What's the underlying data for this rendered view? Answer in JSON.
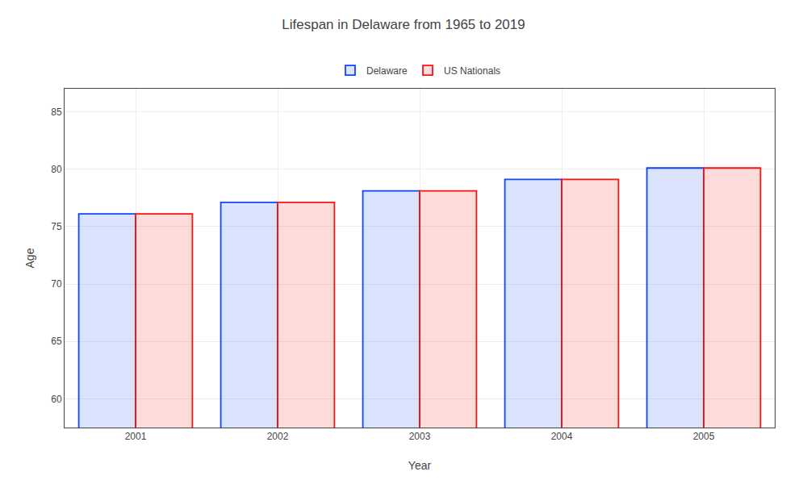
{
  "chart_data": {
    "type": "bar",
    "title": "Lifespan in Delaware from 1965 to 2019",
    "xlabel": "Year",
    "ylabel": "Age",
    "categories": [
      "2001",
      "2002",
      "2003",
      "2004",
      "2005"
    ],
    "series": [
      {
        "name": "Delaware",
        "color": "#1144ff",
        "values": [
          76.1,
          77.1,
          78.1,
          79.1,
          80.1
        ]
      },
      {
        "name": "US Nationals",
        "color": "#ff1111",
        "values": [
          76.1,
          77.1,
          78.1,
          79.1,
          80.1
        ]
      }
    ],
    "ylim": [
      57.5,
      87
    ],
    "yticks": [
      60,
      65,
      70,
      75,
      80,
      85
    ],
    "grid": true,
    "legend": "top"
  }
}
